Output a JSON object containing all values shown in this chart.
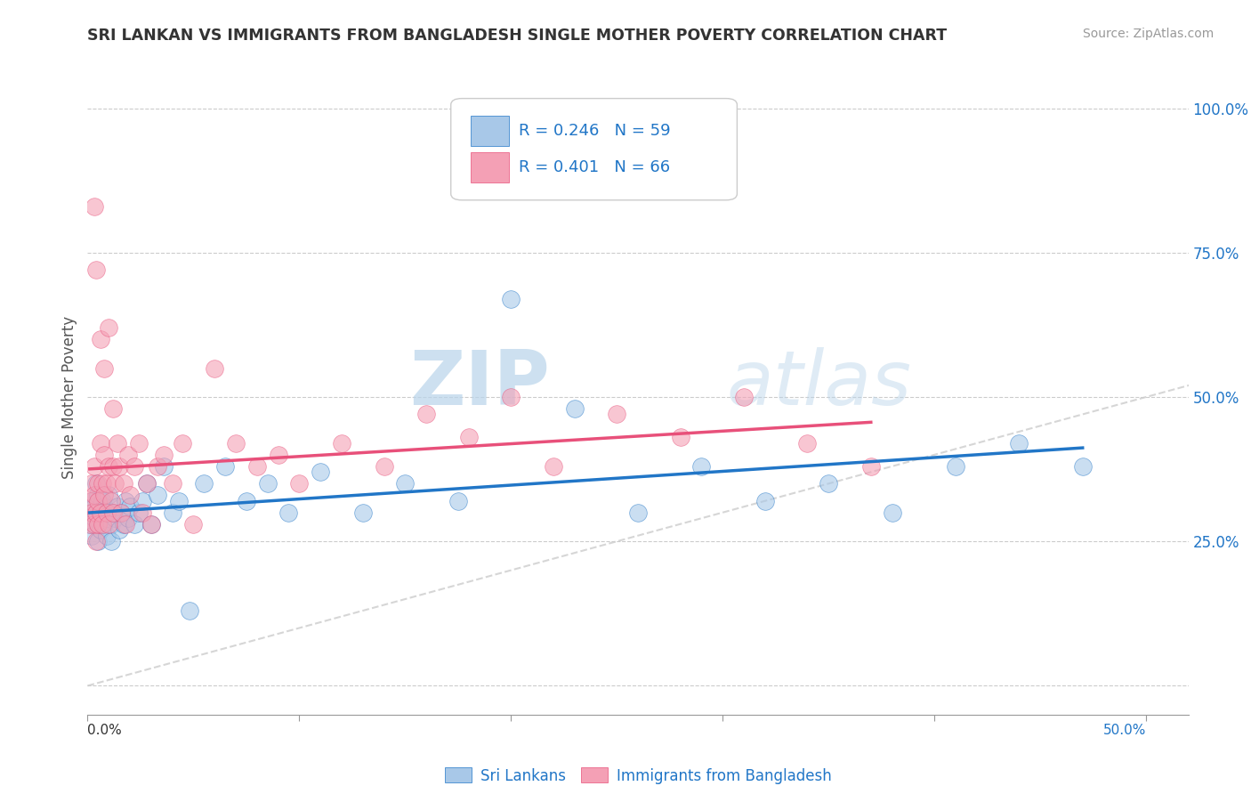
{
  "title": "SRI LANKAN VS IMMIGRANTS FROM BANGLADESH SINGLE MOTHER POVERTY CORRELATION CHART",
  "source": "Source: ZipAtlas.com",
  "ylabel": "Single Mother Poverty",
  "ytick_vals": [
    0.0,
    0.25,
    0.5,
    0.75,
    1.0
  ],
  "ytick_labels": [
    "",
    "25.0%",
    "50.0%",
    "75.0%",
    "100.0%"
  ],
  "xtick_vals": [
    0.0,
    0.1,
    0.2,
    0.3,
    0.4,
    0.5
  ],
  "xtick_labels": [
    "",
    "",
    "",
    "",
    "",
    ""
  ],
  "xlim": [
    0.0,
    0.52
  ],
  "ylim": [
    -0.05,
    1.05
  ],
  "legend_label1": "Sri Lankans",
  "legend_label2": "Immigrants from Bangladesh",
  "color_blue": "#a8c8e8",
  "color_pink": "#f4a0b5",
  "color_line_blue": "#2176c7",
  "color_line_pink": "#e8507a",
  "color_diagonal": "#cccccc",
  "background_color": "#ffffff",
  "watermark_zip": "ZIP",
  "watermark_atlas": "atlas",
  "sri_lankan_x": [
    0.001,
    0.002,
    0.002,
    0.003,
    0.003,
    0.004,
    0.004,
    0.005,
    0.005,
    0.005,
    0.006,
    0.006,
    0.007,
    0.008,
    0.008,
    0.009,
    0.009,
    0.01,
    0.01,
    0.011,
    0.011,
    0.012,
    0.013,
    0.014,
    0.015,
    0.016,
    0.017,
    0.018,
    0.019,
    0.02,
    0.022,
    0.024,
    0.026,
    0.028,
    0.03,
    0.033,
    0.036,
    0.04,
    0.043,
    0.048,
    0.055,
    0.065,
    0.075,
    0.085,
    0.095,
    0.11,
    0.13,
    0.15,
    0.175,
    0.2,
    0.23,
    0.26,
    0.29,
    0.32,
    0.35,
    0.38,
    0.41,
    0.44,
    0.47
  ],
  "sri_lankan_y": [
    0.28,
    0.32,
    0.26,
    0.31,
    0.29,
    0.3,
    0.35,
    0.28,
    0.33,
    0.25,
    0.3,
    0.27,
    0.32,
    0.28,
    0.31,
    0.29,
    0.26,
    0.3,
    0.33,
    0.28,
    0.25,
    0.3,
    0.29,
    0.31,
    0.27,
    0.3,
    0.28,
    0.32,
    0.29,
    0.31,
    0.28,
    0.3,
    0.32,
    0.35,
    0.28,
    0.33,
    0.38,
    0.3,
    0.32,
    0.13,
    0.35,
    0.38,
    0.32,
    0.35,
    0.3,
    0.37,
    0.3,
    0.35,
    0.32,
    0.67,
    0.48,
    0.3,
    0.38,
    0.32,
    0.35,
    0.3,
    0.38,
    0.42,
    0.38
  ],
  "bangladesh_x": [
    0.001,
    0.001,
    0.002,
    0.002,
    0.003,
    0.003,
    0.003,
    0.004,
    0.004,
    0.005,
    0.005,
    0.005,
    0.006,
    0.006,
    0.007,
    0.007,
    0.008,
    0.008,
    0.009,
    0.009,
    0.01,
    0.01,
    0.011,
    0.012,
    0.012,
    0.013,
    0.014,
    0.015,
    0.016,
    0.017,
    0.018,
    0.019,
    0.02,
    0.022,
    0.024,
    0.026,
    0.028,
    0.03,
    0.033,
    0.036,
    0.04,
    0.045,
    0.05,
    0.06,
    0.07,
    0.08,
    0.09,
    0.1,
    0.12,
    0.14,
    0.16,
    0.18,
    0.2,
    0.22,
    0.25,
    0.28,
    0.31,
    0.34,
    0.37,
    0.003,
    0.004,
    0.006,
    0.008,
    0.01,
    0.012
  ],
  "bangladesh_y": [
    0.28,
    0.32,
    0.3,
    0.35,
    0.28,
    0.33,
    0.38,
    0.3,
    0.25,
    0.32,
    0.35,
    0.28,
    0.42,
    0.3,
    0.35,
    0.28,
    0.4,
    0.33,
    0.35,
    0.3,
    0.38,
    0.28,
    0.32,
    0.38,
    0.3,
    0.35,
    0.42,
    0.38,
    0.3,
    0.35,
    0.28,
    0.4,
    0.33,
    0.38,
    0.42,
    0.3,
    0.35,
    0.28,
    0.38,
    0.4,
    0.35,
    0.42,
    0.28,
    0.55,
    0.42,
    0.38,
    0.4,
    0.35,
    0.42,
    0.38,
    0.47,
    0.43,
    0.5,
    0.38,
    0.47,
    0.43,
    0.5,
    0.42,
    0.38,
    0.83,
    0.72,
    0.6,
    0.55,
    0.62,
    0.48
  ]
}
